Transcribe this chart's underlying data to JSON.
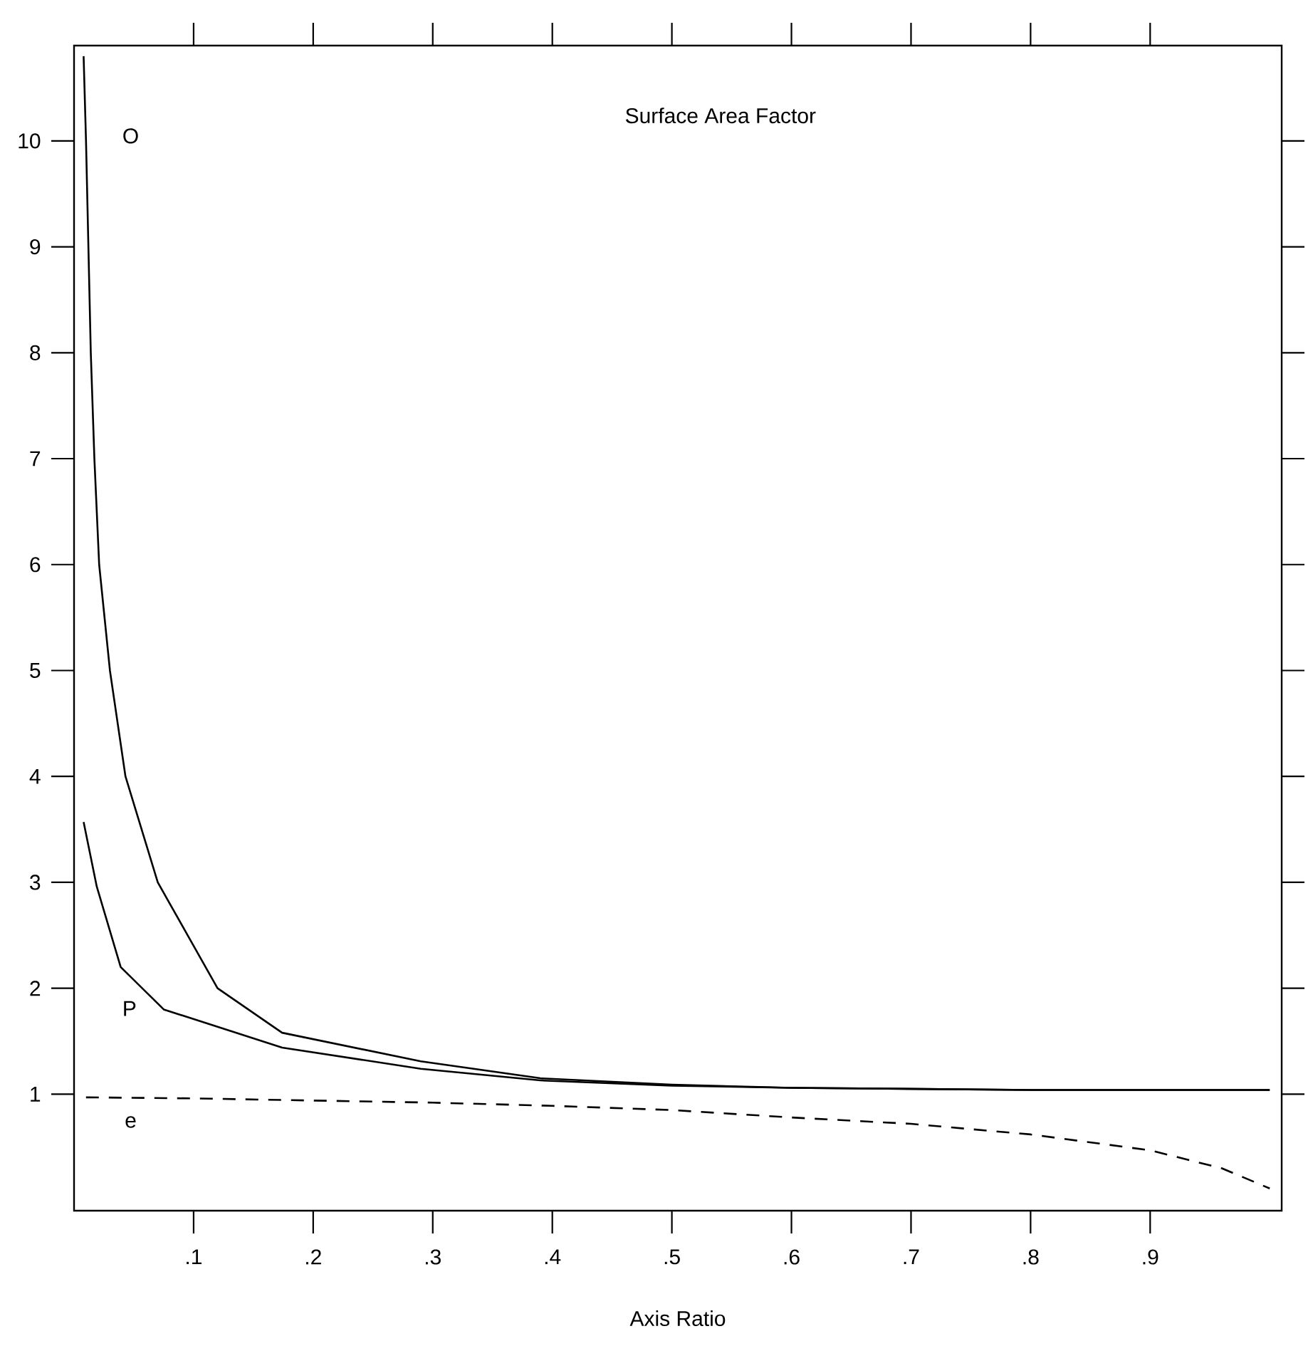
{
  "chart_data": {
    "type": "line",
    "title": "Surface Area Factor",
    "xlabel": "Axis Ratio",
    "xlim": [
      0,
      1.01
    ],
    "ylim": [
      -0.1,
      10.9
    ],
    "xticks": [
      {
        "value": 0.1,
        "label": ".1"
      },
      {
        "value": 0.2,
        "label": ".2"
      },
      {
        "value": 0.3,
        "label": ".3"
      },
      {
        "value": 0.4,
        "label": ".4"
      },
      {
        "value": 0.5,
        "label": ".5"
      },
      {
        "value": 0.6,
        "label": ".6"
      },
      {
        "value": 0.7,
        "label": ".7"
      },
      {
        "value": 0.8,
        "label": ".8"
      },
      {
        "value": 0.9,
        "label": ".9"
      }
    ],
    "yticks": [
      1,
      2,
      3,
      4,
      5,
      6,
      7,
      8,
      9,
      10
    ],
    "series": [
      {
        "name": "O",
        "color": "#000000",
        "line_style": "solid",
        "x": [
          0.008,
          0.01,
          0.012,
          0.014,
          0.017,
          0.021,
          0.03,
          0.043,
          0.07,
          0.12,
          0.174,
          0.29,
          0.39,
          0.5,
          0.6,
          0.7,
          0.8,
          0.9,
          1.0
        ],
        "values": [
          10.8,
          10,
          9,
          8,
          7,
          6,
          5,
          4,
          3,
          2,
          1.58,
          1.31,
          1.15,
          1.09,
          1.06,
          1.05,
          1.04,
          1.04,
          1.04
        ]
      },
      {
        "name": "P",
        "color": "#000000",
        "line_style": "solid",
        "x": [
          0.008,
          0.019,
          0.039,
          0.075,
          0.174,
          0.29,
          0.39,
          0.5,
          0.6,
          0.7,
          0.8,
          0.9,
          1.0
        ],
        "values": [
          3.57,
          2.96,
          2.2,
          1.8,
          1.44,
          1.24,
          1.13,
          1.08,
          1.06,
          1.05,
          1.04,
          1.04,
          1.04
        ]
      },
      {
        "name": "e",
        "color": "#000000",
        "line_style": "dashed",
        "x": [
          0.01,
          0.1,
          0.2,
          0.3,
          0.4,
          0.5,
          0.6,
          0.7,
          0.8,
          0.9,
          0.96,
          1.0
        ],
        "values": [
          0.97,
          0.96,
          0.94,
          0.92,
          0.89,
          0.85,
          0.78,
          0.72,
          0.62,
          0.47,
          0.3,
          0.11
        ]
      }
    ]
  }
}
